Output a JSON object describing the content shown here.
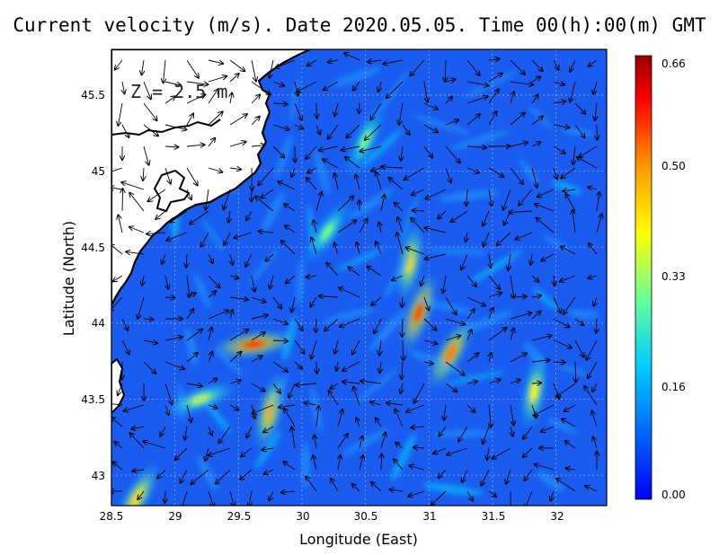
{
  "title": "Current velocity (m/s). Date 2020.05.05. Time 00(h):00(m) GMT",
  "depth_label": "Z = 2.5 m",
  "xlabel": "Longitude (East)",
  "ylabel": "Latitude (North)",
  "x_ticks": [
    "28.5",
    "29",
    "29.5",
    "30",
    "30.5",
    "31",
    "31.5",
    "32"
  ],
  "y_ticks": [
    "43",
    "43.5",
    "44",
    "44.5",
    "45",
    "45.5"
  ],
  "colorbar": {
    "ticks": [
      "0.00",
      "0.16",
      "0.33",
      "0.50",
      "0.66"
    ],
    "colors": [
      "#0000ff",
      "#0066ff",
      "#00ccff",
      "#66ff99",
      "#ffff00",
      "#ff9900",
      "#ff0000",
      "#990000"
    ]
  },
  "chart_data": {
    "type": "heatmap",
    "title": "Current velocity (m/s). Date 2020.05.05. Time 00(h):00(m) GMT",
    "xlabel": "Longitude (East)",
    "ylabel": "Latitude (North)",
    "xlim": [
      28.5,
      32.4
    ],
    "ylim": [
      42.8,
      45.8
    ],
    "value_range": [
      0.0,
      0.66
    ],
    "colorbar_ticks": [
      0.0,
      0.16,
      0.33,
      0.5,
      0.66
    ],
    "grid": true,
    "jets": [
      {
        "lon": 29.62,
        "lat": 43.86,
        "speed": 0.62
      },
      {
        "lon": 30.92,
        "lat": 44.07,
        "speed": 0.6
      },
      {
        "lon": 31.17,
        "lat": 43.8,
        "speed": 0.55
      },
      {
        "lon": 29.75,
        "lat": 43.42,
        "speed": 0.5
      },
      {
        "lon": 30.85,
        "lat": 44.4,
        "speed": 0.45
      },
      {
        "lon": 31.83,
        "lat": 43.55,
        "speed": 0.4
      },
      {
        "lon": 30.2,
        "lat": 44.6,
        "speed": 0.3
      },
      {
        "lon": 30.5,
        "lat": 45.2,
        "speed": 0.3
      },
      {
        "lon": 29.2,
        "lat": 43.5,
        "speed": 0.35
      },
      {
        "lon": 28.7,
        "lat": 42.85,
        "speed": 0.45
      }
    ]
  }
}
